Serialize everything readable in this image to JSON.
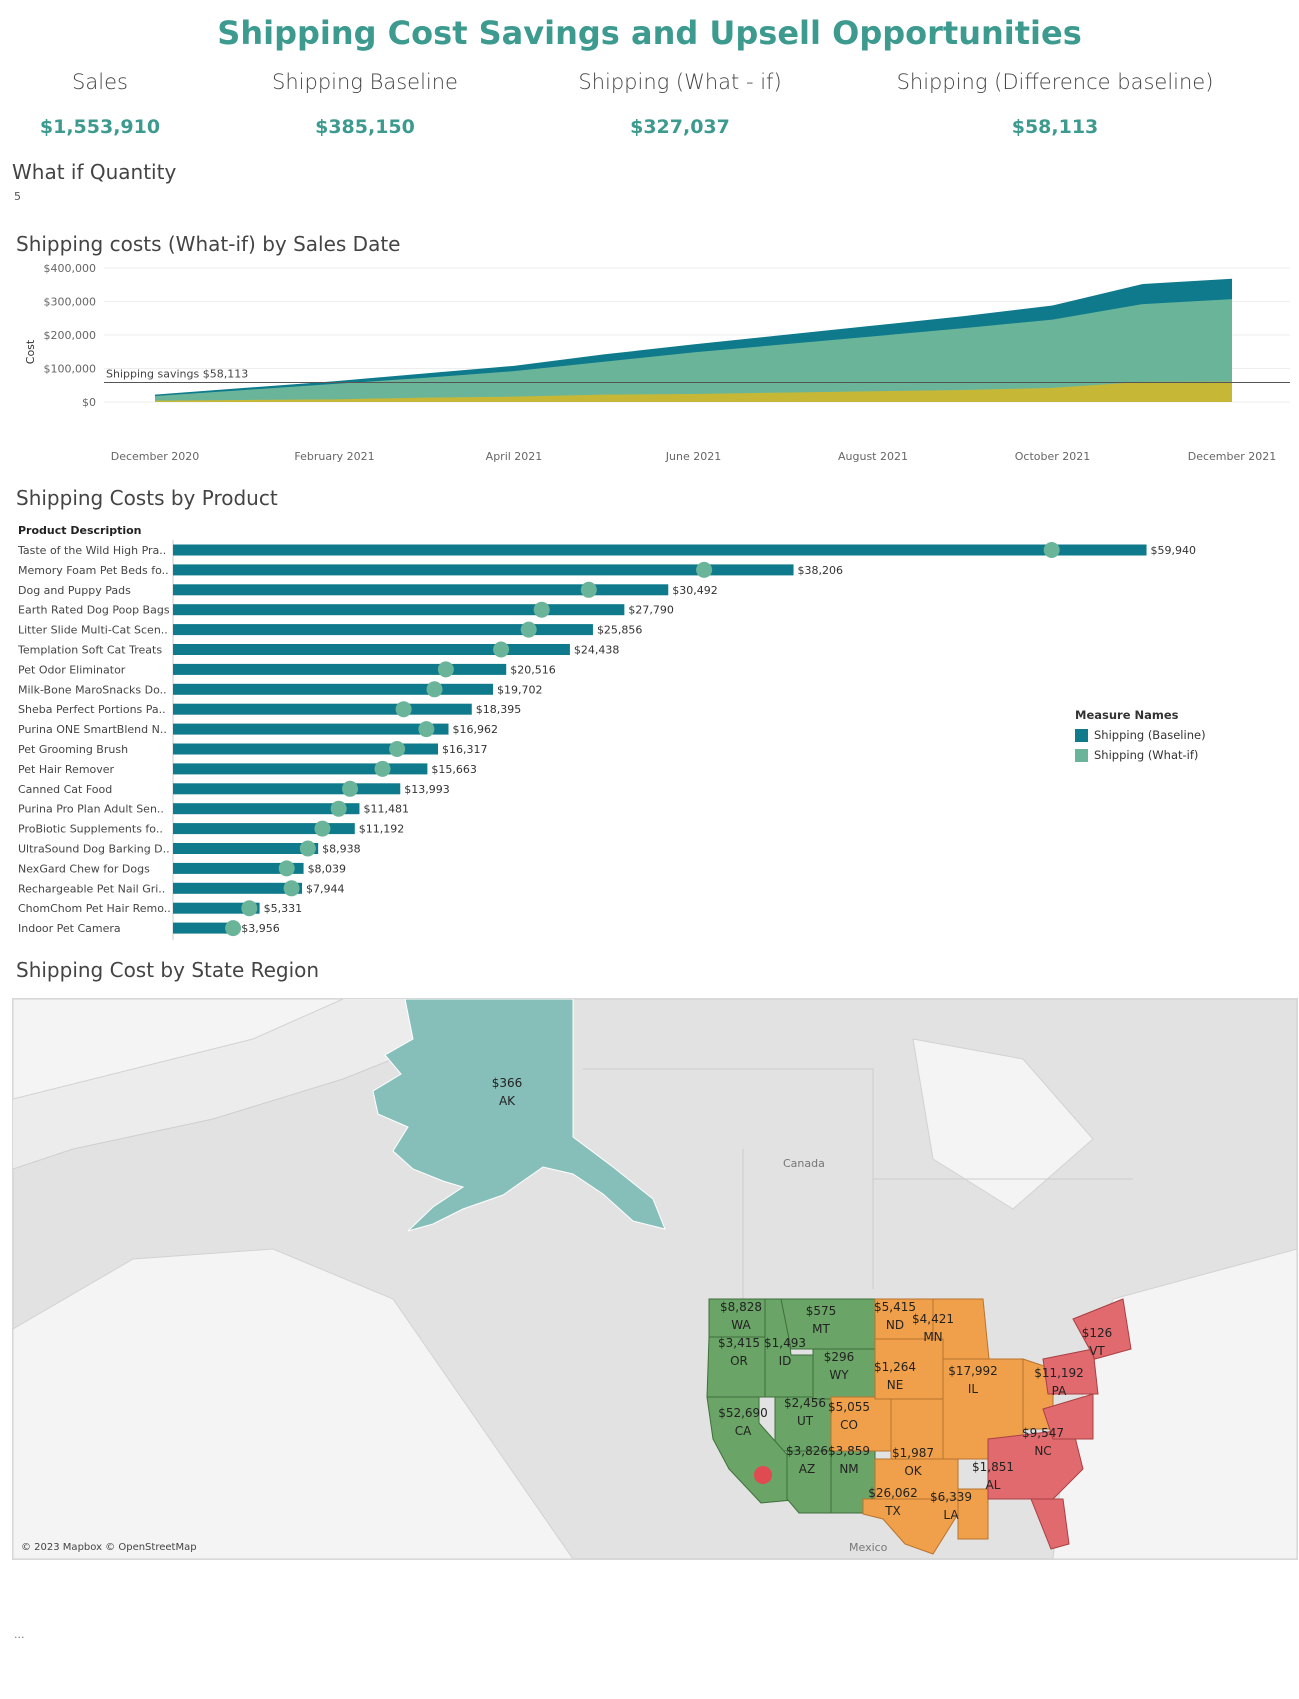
{
  "title": "Shipping Cost Savings and Upsell Opportunities",
  "kpis": [
    {
      "label": "Sales",
      "value": "$1,553,910"
    },
    {
      "label": "Shipping Baseline",
      "value": "$385,150"
    },
    {
      "label": "Shipping (What - if)",
      "value": "$327,037"
    },
    {
      "label": "Shipping (Difference baseline)",
      "value": "$58,113"
    }
  ],
  "parameter": {
    "label": "What if Quantity",
    "value": "5"
  },
  "colors": {
    "accent": "#3d9a8f",
    "baseline": "#0e7a8b",
    "whatif": "#6ab59a",
    "savings": "#c6b737",
    "west": "#6aa466",
    "central": "#f0a04b",
    "east": "#e06a6e",
    "alaska": "#86bfb9"
  },
  "area_chart_title": "Shipping costs (What-if) by Sales Date",
  "bar_chart_title": "Shipping Costs by Product",
  "map_title": "Shipping Cost by State Region",
  "chart_data": [
    {
      "type": "area",
      "ylabel": "Cost",
      "ylim": [
        0,
        400000
      ],
      "y_ticks": [
        0,
        100000,
        200000,
        300000,
        400000
      ],
      "y_tick_labels": [
        "$0",
        "$100,000",
        "$200,000",
        "$300,000",
        "$400,000"
      ],
      "x": [
        "2020-12",
        "2021-01",
        "2021-02",
        "2021-03",
        "2021-04",
        "2021-05",
        "2021-06",
        "2021-07",
        "2021-08",
        "2021-09",
        "2021-10",
        "2021-11",
        "2021-12"
      ],
      "x_tick_labels": [
        "December 2020",
        "February 2021",
        "April 2021",
        "June 2021",
        "August 2021",
        "October 2021",
        "December 2021"
      ],
      "x_tick_positions": [
        "2020-12",
        "2021-02",
        "2021-04",
        "2021-06",
        "2021-08",
        "2021-10",
        "2021-12"
      ],
      "series": [
        {
          "name": "Shipping (Baseline)",
          "values": [
            22000,
            42000,
            62000,
            85000,
            108000,
            142000,
            172000,
            200000,
            228000,
            256000,
            288000,
            352000,
            368000
          ]
        },
        {
          "name": "Shipping (What-if)",
          "values": [
            18000,
            36000,
            54000,
            72000,
            92000,
            120000,
            148000,
            172000,
            196000,
            220000,
            246000,
            292000,
            307000
          ]
        },
        {
          "name": "Shipping savings",
          "values": [
            4000,
            6000,
            8000,
            13000,
            16000,
            22000,
            24000,
            28000,
            32000,
            36000,
            42000,
            60000,
            61000
          ]
        }
      ],
      "reference_line": {
        "value": 58113,
        "label": "Shipping savings $58,113"
      }
    },
    {
      "type": "bar",
      "axis_title": "Product Description",
      "xlim": [
        0,
        62000
      ],
      "categories": [
        "Taste of the Wild High Pra..",
        "Memory Foam Pet Beds fo..",
        "Dog and Puppy Pads",
        "Earth Rated Dog Poop Bags",
        "Litter Slide Multi-Cat Scen..",
        "Templation Soft Cat Treats",
        "Pet Odor Eliminator",
        "Milk-Bone MaroSnacks Do..",
        "Sheba Perfect Portions Pa..",
        "Purina ONE SmartBlend N..",
        "Pet Grooming Brush",
        "Pet Hair Remover",
        "Canned Cat Food",
        "Purina Pro Plan Adult Sen..",
        "ProBiotic Supplements fo..",
        "UltraSound Dog Barking D..",
        "NexGard Chew for Dogs",
        "Rechargeable Pet Nail Gri..",
        "ChomChom Pet Hair Remo..",
        "Indoor Pet Camera"
      ],
      "series": [
        {
          "name": "Shipping (Baseline)",
          "values": [
            59940,
            38206,
            30492,
            27790,
            25856,
            24438,
            20516,
            19702,
            18395,
            16962,
            16317,
            15663,
            13993,
            11481,
            11192,
            8938,
            8039,
            7944,
            5331,
            3956
          ]
        },
        {
          "name": "Shipping (What-if)",
          "values": [
            54100,
            32700,
            25600,
            22700,
            21900,
            20200,
            16800,
            16100,
            14200,
            15600,
            13800,
            12900,
            10900,
            10200,
            9200,
            8300,
            7000,
            7300,
            4700,
            3700
          ]
        }
      ],
      "value_labels": [
        "$59,940",
        "$38,206",
        "$30,492",
        "$27,790",
        "$25,856",
        "$24,438",
        "$20,516",
        "$19,702",
        "$18,395",
        "$16,962",
        "$16,317",
        "$15,663",
        "$13,993",
        "$11,481",
        "$11,192",
        "$8,938",
        "$8,039",
        "$7,944",
        "$5,331",
        "$3,956"
      ],
      "legend": {
        "title": "Measure Names",
        "placement": "right"
      }
    },
    {
      "type": "map",
      "regions": [
        {
          "state": "AK",
          "value": "$366",
          "region": "alaska"
        },
        {
          "state": "WA",
          "value": "$8,828",
          "region": "west"
        },
        {
          "state": "OR",
          "value": "$3,415",
          "region": "west"
        },
        {
          "state": "ID",
          "value": "$1,493",
          "region": "west"
        },
        {
          "state": "MT",
          "value": "$575",
          "region": "west"
        },
        {
          "state": "WY",
          "value": "$296",
          "region": "west"
        },
        {
          "state": "UT",
          "value": "$2,456",
          "region": "west"
        },
        {
          "state": "CA",
          "value": "$52,690",
          "region": "west"
        },
        {
          "state": "AZ",
          "value": "$3,826",
          "region": "west"
        },
        {
          "state": "NM",
          "value": "$3,859",
          "region": "west"
        },
        {
          "state": "CO",
          "value": "$5,055",
          "region": "central"
        },
        {
          "state": "ND",
          "value": "$5,415",
          "region": "central"
        },
        {
          "state": "MN",
          "value": "$4,421",
          "region": "central"
        },
        {
          "state": "NE",
          "value": "$1,264",
          "region": "central"
        },
        {
          "state": "IL",
          "value": "$17,992",
          "region": "central"
        },
        {
          "state": "OK",
          "value": "$1,987",
          "region": "central"
        },
        {
          "state": "TX",
          "value": "$26,062",
          "region": "central"
        },
        {
          "state": "LA",
          "value": "$6,339",
          "region": "central"
        },
        {
          "state": "AL",
          "value": "$1,851",
          "region": "east"
        },
        {
          "state": "NC",
          "value": "$9,547",
          "region": "east"
        },
        {
          "state": "PA",
          "value": "$11,192",
          "region": "east"
        },
        {
          "state": "VT",
          "value": "$126",
          "region": "east"
        }
      ],
      "place_labels": [
        "Canada",
        "Mexico"
      ],
      "attribution": "© 2023 Mapbox © OpenStreetMap"
    }
  ],
  "footer": "..."
}
